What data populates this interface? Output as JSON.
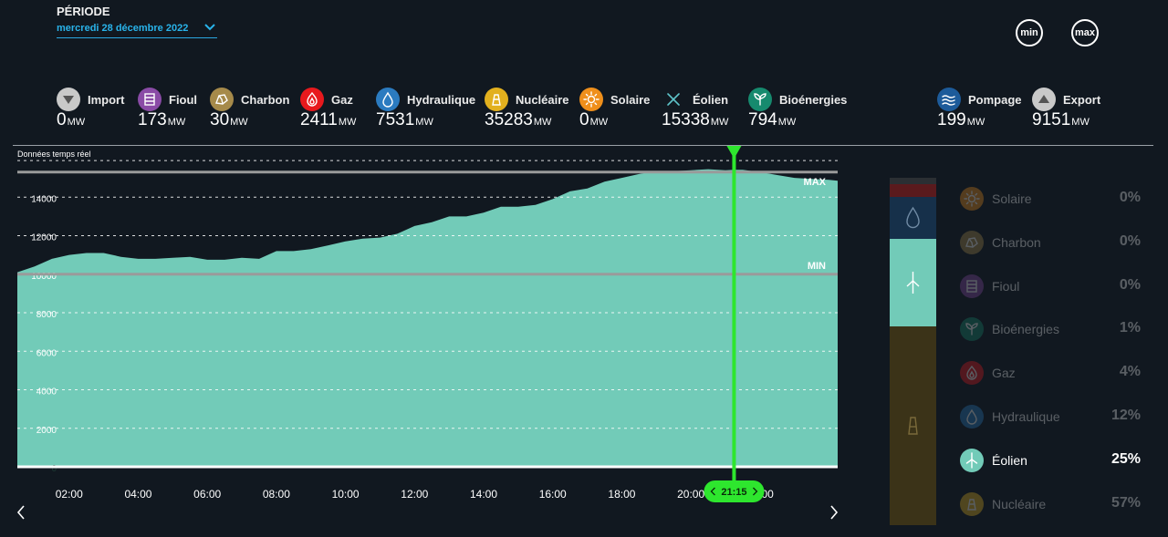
{
  "header": {
    "periode_label": "PÉRIODE",
    "date": "mercredi 28 décembre 2022",
    "min_label": "min",
    "max_label": "max"
  },
  "unit": "MW",
  "sources": [
    {
      "name": "Import",
      "value": "0",
      "color": "#c9c9c9",
      "icon": "import-arrow-icon"
    },
    {
      "name": "Fioul",
      "value": "173",
      "color": "#8a4ba6",
      "icon": "fuel-barrel-icon"
    },
    {
      "name": "Charbon",
      "value": "30",
      "color": "#a68a4a",
      "icon": "coal-icon"
    },
    {
      "name": "Gaz",
      "value": "2411",
      "color": "#e8191d",
      "icon": "flame-icon"
    },
    {
      "name": "Hydraulique",
      "value": "7531",
      "color": "#2b7bc0",
      "icon": "water-drop-icon"
    },
    {
      "name": "Nucléaire",
      "value": "35283",
      "color": "#e2b01e",
      "icon": "nuclear-plant-icon"
    },
    {
      "name": "Solaire",
      "value": "0",
      "color": "#ef8f1b",
      "icon": "sun-icon"
    },
    {
      "name": "Éolien",
      "value": "15338",
      "color": "#5ec3c9",
      "icon": "wind-turbine-icon"
    },
    {
      "name": "Bioénergies",
      "value": "794",
      "color": "#168a6e",
      "icon": "leaf-icon"
    },
    {
      "name": "Pompage",
      "value": "199",
      "color": "#1d5b9a",
      "icon": "waves-icon"
    },
    {
      "name": "Export",
      "value": "9151",
      "color": "#c9c9c9",
      "icon": "export-arrow-icon"
    }
  ],
  "chart_data": {
    "type": "area",
    "title": "Données temps réel",
    "series_name": "Éolien",
    "color": "#72cbb8",
    "x_ticks": [
      "02:00",
      "04:00",
      "06:00",
      "08:00",
      "10:00",
      "12:00",
      "14:00",
      "16:00",
      "18:00",
      "20:00",
      "22:00"
    ],
    "y_ticks": [
      0,
      2000,
      4000,
      6000,
      8000,
      10000,
      12000,
      14000
    ],
    "ylim": [
      0,
      16000
    ],
    "x_range_hours": [
      0.5,
      24.25
    ],
    "x": [
      0.5,
      1,
      1.5,
      2,
      2.5,
      3,
      3.5,
      4,
      4.5,
      5,
      5.5,
      6,
      6.5,
      7,
      7.5,
      8,
      8.5,
      9,
      9.5,
      10,
      10.5,
      11,
      11.5,
      12,
      12.5,
      13,
      13.5,
      14,
      14.5,
      15,
      15.5,
      16,
      16.5,
      17,
      17.5,
      18,
      18.5,
      19,
      19.5,
      20,
      20.5,
      21,
      21.25,
      21.5,
      22,
      22.5,
      23,
      23.5,
      24,
      24.25
    ],
    "y": [
      10100,
      10400,
      10800,
      11000,
      11100,
      11100,
      10900,
      10800,
      10800,
      10850,
      10900,
      10750,
      10750,
      10850,
      10800,
      11200,
      11200,
      11300,
      11500,
      11700,
      11850,
      11900,
      12100,
      12500,
      12700,
      13000,
      13000,
      13200,
      13500,
      13500,
      13600,
      13900,
      14300,
      14450,
      14800,
      15000,
      15200,
      15350,
      15350,
      15400,
      15450,
      15400,
      15420,
      15420,
      15300,
      15150,
      15000,
      14950,
      14900,
      14850
    ],
    "min_line": {
      "label": "MIN",
      "value": 10000
    },
    "max_line": {
      "label": "MAX",
      "value": 15300
    },
    "cursor": {
      "time": "21:15",
      "hour": 21.25
    }
  },
  "breakdown": [
    {
      "name": "Solaire",
      "pct": "0%",
      "color": "#ef8f1b",
      "icon": "sun-icon",
      "active": false
    },
    {
      "name": "Charbon",
      "pct": "0%",
      "color": "#a68a4a",
      "icon": "coal-icon",
      "active": false
    },
    {
      "name": "Fioul",
      "pct": "0%",
      "color": "#8a4ba6",
      "icon": "fuel-barrel-icon",
      "active": false
    },
    {
      "name": "Bioénergies",
      "pct": "1%",
      "color": "#168a6e",
      "icon": "leaf-icon",
      "active": false
    },
    {
      "name": "Gaz",
      "pct": "4%",
      "color": "#e8191d",
      "icon": "flame-icon",
      "active": false
    },
    {
      "name": "Hydraulique",
      "pct": "12%",
      "color": "#2b7bc0",
      "icon": "water-drop-icon",
      "active": false
    },
    {
      "name": "Éolien",
      "pct": "25%",
      "color": "#72cbb8",
      "icon": "wind-turbine-icon",
      "active": true
    },
    {
      "name": "Nucléaire",
      "pct": "57%",
      "color": "#e2b01e",
      "icon": "nuclear-plant-icon",
      "active": false
    }
  ]
}
